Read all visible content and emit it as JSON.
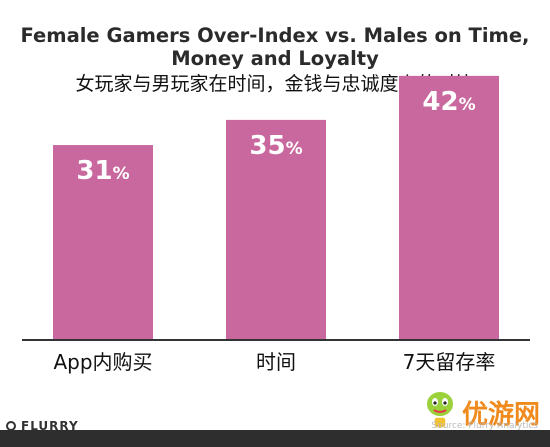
{
  "chart_data": {
    "type": "bar",
    "title": "Female Gamers Over-Index vs. Males on Time, Money and Loyalty",
    "subtitle": "女玩家与男玩家在时间，金钱与忠诚度上的对比",
    "categories": [
      "App内购买",
      "时间",
      "7天留存率"
    ],
    "values": [
      31,
      35,
      42
    ],
    "value_suffix": "%",
    "xlabel": "",
    "ylabel": "",
    "ylim": [
      0,
      45
    ],
    "grid": false,
    "legend": "none",
    "colors": {
      "bar": "#c9689e",
      "bar_label": "#ffffff",
      "axis": "#333333",
      "category_label": "#111111"
    }
  },
  "branding": {
    "logo_text": "FLURRY",
    "source_text": "Source: Flurry Analytics",
    "watermark_text": "优游网",
    "footer_color": "#2e2e2e",
    "watermark_color": "#f08a1c"
  }
}
